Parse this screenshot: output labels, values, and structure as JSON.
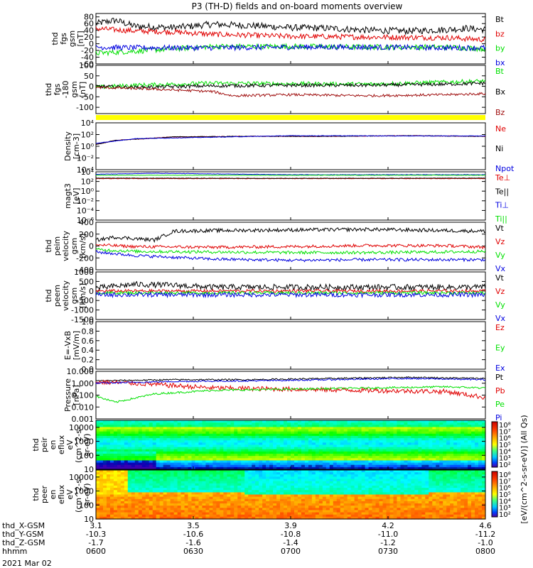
{
  "title": "P3 (TH-D) fields and on-board moments overview",
  "date_label": "2021 Mar 02",
  "colors": {
    "black": "#000000",
    "red": "#e00000",
    "green": "#00e000",
    "blue": "#0000e0",
    "darkred": "#a01010",
    "yellow": "#ffff00"
  },
  "chart_data": [
    {
      "id": "fgs",
      "type": "line",
      "ylabel": [
        "thd",
        "fgs",
        "gsm",
        "[nT]"
      ],
      "ylim": [
        -60,
        90
      ],
      "yticks": [
        -60,
        -40,
        -20,
        0,
        20,
        40,
        60,
        80
      ],
      "series": [
        {
          "name": "Bt",
          "color": "#000000",
          "x": [
            0,
            0.05,
            0.1,
            0.2,
            0.3,
            0.4,
            0.5,
            0.6,
            0.7,
            0.8,
            0.9,
            0.95,
            1
          ],
          "y": [
            60,
            70,
            52,
            48,
            58,
            54,
            48,
            46,
            40,
            38,
            42,
            46,
            42
          ],
          "noise": 10
        },
        {
          "name": "bz",
          "color": "#e00000",
          "x": [
            0,
            0.1,
            0.2,
            0.3,
            0.5,
            0.7,
            0.9,
            1
          ],
          "y": [
            45,
            38,
            35,
            28,
            22,
            20,
            18,
            12
          ],
          "noise": 8
        },
        {
          "name": "by",
          "color": "#00e000",
          "x": [
            0,
            0.1,
            0.3,
            0.5,
            0.7,
            0.9,
            1
          ],
          "y": [
            -28,
            -22,
            -8,
            -8,
            -10,
            -10,
            -15
          ],
          "noise": 8
        },
        {
          "name": "bx",
          "color": "#0000e0",
          "x": [
            0,
            0.1,
            0.3,
            0.5,
            0.7,
            0.9,
            1
          ],
          "y": [
            -10,
            -12,
            -12,
            -10,
            -10,
            -12,
            -12
          ],
          "noise": 8
        }
      ]
    },
    {
      "id": "fgs2",
      "type": "line",
      "ylabel": [
        "thd",
        "fgs",
        "-180",
        "gsm",
        "[nT]"
      ],
      "ylim": [
        -130,
        100
      ],
      "yticks": [
        -100,
        -50,
        0,
        50,
        100
      ],
      "series": [
        {
          "name": "Bt",
          "color": "#00e000",
          "x": [
            0,
            0.1,
            0.3,
            0.5,
            0.7,
            0.9,
            1
          ],
          "y": [
            -5,
            5,
            15,
            12,
            10,
            20,
            25
          ],
          "noise": 10
        },
        {
          "name": "Bx",
          "color": "#000000",
          "x": [
            0,
            0.1,
            0.3,
            0.5,
            0.7,
            0.9,
            1
          ],
          "y": [
            0,
            -5,
            2,
            5,
            5,
            10,
            15
          ],
          "noise": 8
        },
        {
          "name": "Bz",
          "color": "#a01010",
          "x": [
            0,
            0.1,
            0.3,
            0.35,
            0.5,
            0.7,
            0.9,
            1
          ],
          "y": [
            -5,
            -10,
            -25,
            -45,
            -40,
            -45,
            -40,
            -35
          ],
          "noise": 6
        }
      ]
    },
    {
      "id": "density",
      "type": "line",
      "log": true,
      "ylabel": [
        "Density",
        "[cm-3]"
      ],
      "ylim_exp": [
        -4,
        4
      ],
      "ytick_exps": [
        -4,
        -2,
        0,
        2,
        4
      ],
      "series": [
        {
          "name": "Ne",
          "color": "#e00000",
          "x": [
            0,
            0.05,
            0.1,
            0.2,
            0.4,
            0.6,
            0.8,
            1
          ],
          "y": [
            0.3,
            1.0,
            1.2,
            1.6,
            1.7,
            1.7,
            1.8,
            1.7
          ],
          "noise": 0.05
        },
        {
          "name": "Ni",
          "color": "#000000",
          "x": [
            0,
            0.05,
            0.1,
            0.2,
            0.4,
            0.6,
            0.8,
            1
          ],
          "y": [
            0.3,
            1.0,
            1.2,
            1.6,
            1.7,
            1.7,
            1.8,
            1.7
          ],
          "noise": 0.05
        },
        {
          "name": "Npot",
          "color": "#0000e0",
          "x": [
            0,
            0.1,
            0.5,
            1
          ],
          "y": [
            0.5,
            1.3,
            1.8,
            1.75
          ],
          "noise": 0.04
        }
      ]
    },
    {
      "id": "temperature",
      "type": "line",
      "log": true,
      "ylabel": [
        "magt3",
        "[eV]"
      ],
      "ylim_exp": [
        -6,
        4
      ],
      "ytick_exps": [
        -6,
        -4,
        -2,
        0,
        2,
        4
      ],
      "series": [
        {
          "name": "Te⊥",
          "color": "#e00000",
          "x": [
            0,
            0.5,
            1
          ],
          "y": [
            2.6,
            2.6,
            2.6
          ],
          "noise": 0.04
        },
        {
          "name": "Te||",
          "color": "#000000",
          "x": [
            0,
            0.5,
            1
          ],
          "y": [
            2.7,
            2.65,
            2.7
          ],
          "noise": 0.04
        },
        {
          "name": "Ti⊥",
          "color": "#0000e0",
          "x": [
            0,
            0.15,
            0.5,
            1
          ],
          "y": [
            3.5,
            3.7,
            3.4,
            3.4
          ],
          "noise": 0.04
        },
        {
          "name": "Ti||",
          "color": "#00e000",
          "x": [
            0,
            0.5,
            1
          ],
          "y": [
            3.3,
            3.3,
            3.3
          ],
          "noise": 0.04
        }
      ]
    },
    {
      "id": "peim",
      "type": "line",
      "ylabel": [
        "thd",
        "peim",
        "velocity",
        "gsm",
        "[km/s]"
      ],
      "ylim": [
        -400,
        400
      ],
      "yticks": [
        -400,
        -200,
        0,
        200,
        400
      ],
      "series": [
        {
          "name": "Vt",
          "color": "#000000",
          "x": [
            0,
            0.05,
            0.15,
            0.2,
            0.3,
            0.5,
            0.7,
            0.9,
            1
          ],
          "y": [
            100,
            150,
            100,
            250,
            260,
            270,
            280,
            260,
            250
          ],
          "noise": 30
        },
        {
          "name": "Vz",
          "color": "#e00000",
          "x": [
            0,
            0.1,
            0.3,
            0.5,
            0.7,
            0.9,
            1
          ],
          "y": [
            20,
            -10,
            -20,
            -10,
            10,
            5,
            -20
          ],
          "noise": 25
        },
        {
          "name": "Vy",
          "color": "#00e000",
          "x": [
            0,
            0.1,
            0.3,
            0.5,
            0.7,
            0.9,
            1
          ],
          "y": [
            -60,
            -90,
            -100,
            -110,
            -110,
            -100,
            -90
          ],
          "noise": 25
        },
        {
          "name": "Vx",
          "color": "#0000e0",
          "x": [
            0,
            0.1,
            0.3,
            0.5,
            0.7,
            0.9,
            1
          ],
          "y": [
            -100,
            -160,
            -220,
            -240,
            -230,
            -230,
            -230
          ],
          "noise": 25
        }
      ]
    },
    {
      "id": "peem",
      "type": "line",
      "ylabel": [
        "thd",
        "peem",
        "velocity",
        "gsm",
        "[km/s]"
      ],
      "ylim": [
        -1500,
        1000
      ],
      "yticks": [
        -1500,
        -1000,
        -500,
        0,
        500,
        1000
      ],
      "series": [
        {
          "name": "Vt",
          "color": "#000000",
          "x": [
            0,
            0.1,
            0.2,
            0.3,
            0.5,
            0.7,
            0.9,
            1
          ],
          "y": [
            150,
            350,
            300,
            200,
            200,
            200,
            200,
            200
          ],
          "noise": 150
        },
        {
          "name": "Vz",
          "color": "#e00000",
          "x": [
            0,
            0.5,
            1
          ],
          "y": [
            0,
            0,
            0
          ],
          "noise": 80
        },
        {
          "name": "Vy",
          "color": "#00e000",
          "x": [
            0,
            0.5,
            1
          ],
          "y": [
            -100,
            -100,
            -100
          ],
          "noise": 80
        },
        {
          "name": "Vx",
          "color": "#0000e0",
          "x": [
            0,
            0.5,
            1
          ],
          "y": [
            -200,
            -200,
            -200
          ],
          "noise": 120
        }
      ]
    },
    {
      "id": "efield",
      "type": "line",
      "ylabel": [
        "E=-VxB",
        "[mV/m]"
      ],
      "ylim": [
        0,
        1
      ],
      "yticks": [
        0.0,
        0.2,
        0.4,
        0.6,
        0.8,
        1.0
      ],
      "ytick_labels": [
        "0.0",
        "0.2",
        "0.4",
        "0.6",
        "0.8",
        "1.0"
      ],
      "series": [
        {
          "name": "Ez",
          "color": "#e00000",
          "x": [],
          "y": []
        },
        {
          "name": "Ey",
          "color": "#00e000",
          "x": [],
          "y": []
        },
        {
          "name": "Ex",
          "color": "#0000e0",
          "x": [],
          "y": []
        }
      ]
    },
    {
      "id": "pressure",
      "type": "line",
      "log": true,
      "ylabel": [
        "Pressure",
        "[nPa]"
      ],
      "ylim_exp": [
        -3,
        1
      ],
      "ytick_exps": [
        -3,
        -2,
        -1,
        0,
        1
      ],
      "ytick_labels": [
        "0.001",
        "0.010",
        "0.100",
        "1.000",
        "10.000"
      ],
      "series": [
        {
          "name": "Pt",
          "color": "#000000",
          "x": [
            0,
            0.2,
            0.4,
            0.6,
            0.8,
            1
          ],
          "y": [
            0.2,
            0.3,
            0.3,
            0.4,
            0.5,
            0.4
          ],
          "noise": 0.06
        },
        {
          "name": "Pb",
          "color": "#e00000",
          "x": [
            0,
            0.1,
            0.3,
            0.5,
            0.7,
            0.9,
            1
          ],
          "y": [
            0.1,
            0.0,
            -0.4,
            -0.5,
            -0.6,
            -0.7,
            -1.2
          ],
          "noise": 0.2
        },
        {
          "name": "Pe",
          "color": "#00e000",
          "x": [
            0,
            0.05,
            0.15,
            0.3,
            0.5,
            0.7,
            0.9,
            1
          ],
          "y": [
            -1.1,
            -1.6,
            -0.9,
            -0.6,
            -0.5,
            -0.4,
            -0.3,
            -0.4
          ],
          "noise": 0.08
        },
        {
          "name": "Pi",
          "color": "#0000e0",
          "x": [
            0,
            0.2,
            0.4,
            0.6,
            0.8,
            1
          ],
          "y": [
            0.0,
            0.15,
            0.2,
            0.3,
            0.4,
            0.3
          ],
          "noise": 0.06
        }
      ]
    },
    {
      "id": "peir",
      "type": "heatmap",
      "ylabel": [
        "thd",
        "peir",
        "en",
        "eflux",
        "eV",
        "(cm^2-s-",
        "sr-eV)"
      ],
      "ylim_exp": [
        1,
        4.5
      ],
      "yticks": [
        10,
        100,
        1000,
        10000
      ]
    },
    {
      "id": "peer",
      "type": "heatmap",
      "ylabel": [
        "thd",
        "peer",
        "en",
        "eflux",
        "eV",
        "(cm^2-s-",
        "sr-eV)"
      ],
      "ylim_exp": [
        1,
        4.5
      ],
      "yticks": [
        10,
        100,
        1000,
        10000
      ]
    }
  ],
  "colorbar": {
    "label": "[eV/(cm^2-s-sr-eV)] (All Qs)",
    "ticks_top": [
      "10^8",
      "10^7",
      "10^6",
      "10^5",
      "10^4",
      "10^3",
      "10^2"
    ],
    "ticks_bottom": [
      "10^8",
      "10^7",
      "10^6",
      "10^5",
      "10^4",
      "10^3",
      "10^2"
    ]
  },
  "x_axis": {
    "rows": [
      {
        "label": "thd_X-GSM",
        "values": [
          "3.1",
          "3.5",
          "3.9",
          "4.2",
          "4.6"
        ]
      },
      {
        "label": "thd_Y-GSM",
        "values": [
          "-10.3",
          "-10.6",
          "-10.8",
          "-11.0",
          "-11.2"
        ]
      },
      {
        "label": "thd_Z-GSM",
        "values": [
          "-1.7",
          "-1.6",
          "-1.4",
          "-1.2",
          "-1.0"
        ]
      },
      {
        "label": "hhmm",
        "values": [
          "0600",
          "0630",
          "0700",
          "0730",
          "0800"
        ]
      }
    ]
  }
}
